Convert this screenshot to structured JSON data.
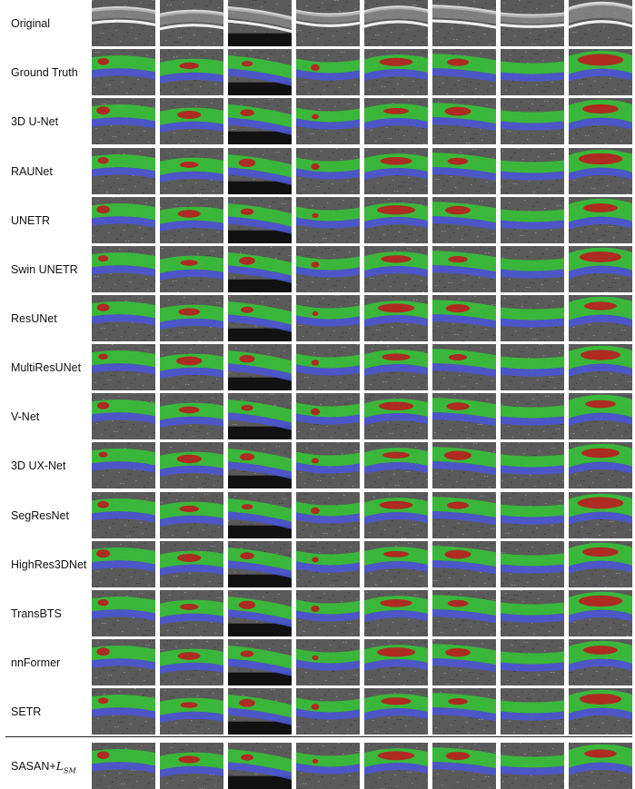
{
  "rows": [
    {
      "label": "Original",
      "type": "original"
    },
    {
      "label": "Ground Truth",
      "type": "seg"
    },
    {
      "label": "3D U-Net",
      "type": "seg"
    },
    {
      "label": "RAUNet",
      "type": "seg"
    },
    {
      "label": "UNETR",
      "type": "seg"
    },
    {
      "label": "Swin UNETR",
      "type": "seg"
    },
    {
      "label": "ResUNet",
      "type": "seg"
    },
    {
      "label": "MultiResUNet",
      "type": "seg"
    },
    {
      "label": "V-Net",
      "type": "seg"
    },
    {
      "label": "3D UX-Net",
      "type": "seg"
    },
    {
      "label": "SegResNet",
      "type": "seg"
    },
    {
      "label": "HighRes3DNet",
      "type": "seg"
    },
    {
      "label": "TransBTS",
      "type": "seg"
    },
    {
      "label": "nnFormer",
      "type": "seg"
    },
    {
      "label": "SETR",
      "type": "seg"
    },
    {
      "label": "SASAN+",
      "label_math": "L",
      "label_math_sub": "SM",
      "type": "seg"
    }
  ],
  "columns_count": 8,
  "colors": {
    "upper_layer": "#35c435",
    "lower_layer": "#4a55d6",
    "fluid": "#b71e1e",
    "scan_background": "#5a5a5a",
    "retina_bright": "#d8d8d8"
  }
}
